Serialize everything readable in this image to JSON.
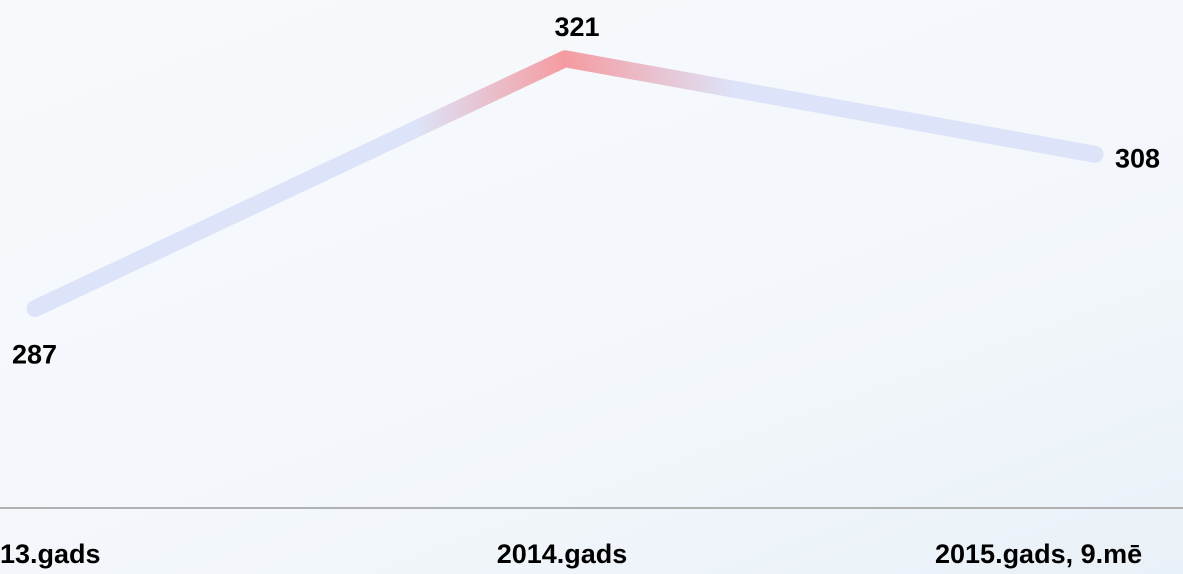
{
  "chart_data": {
    "type": "line",
    "categories": [
      "13.gads",
      "2014.gads",
      "2015.gads, 9.mē"
    ],
    "series": [
      {
        "color": "#dde3f8",
        "values": [
          287,
          321,
          308
        ]
      }
    ],
    "ylim": [
      260,
      329
    ]
  }
}
